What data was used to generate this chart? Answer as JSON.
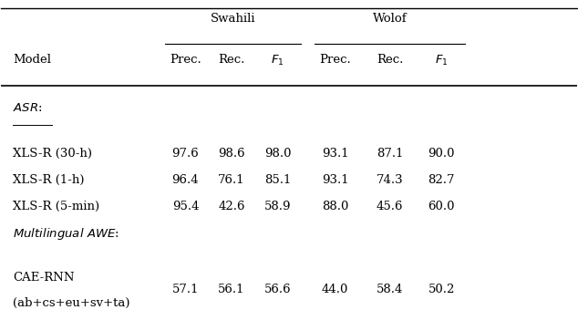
{
  "swahili_header": "Swahili",
  "wolof_header": "Wolof",
  "col_headers": [
    "Model",
    "Prec.",
    "Rec.",
    "F_1",
    "Prec.",
    "Rec.",
    "F_1"
  ],
  "section_asr": "ASR",
  "section_awe": "Multilingual AWE",
  "rows": [
    {
      "model": "XLS-R (30-h)",
      "sw_prec": "97.6",
      "sw_rec": "98.6",
      "sw_f1": "98.0",
      "wo_prec": "93.1",
      "wo_rec": "87.1",
      "wo_f1": "90.0"
    },
    {
      "model": "XLS-R (1-h)",
      "sw_prec": "96.4",
      "sw_rec": "76.1",
      "sw_f1": "85.1",
      "wo_prec": "93.1",
      "wo_rec": "74.3",
      "wo_f1": "82.7"
    },
    {
      "model": "XLS-R (5-min)",
      "sw_prec": "95.4",
      "sw_rec": "42.6",
      "sw_f1": "58.9",
      "wo_prec": "88.0",
      "wo_rec": "45.6",
      "wo_f1": "60.0"
    },
    {
      "model_line1": "CAE-RNN",
      "model_line2": "(ab+cs+eu+sv+ta)",
      "sw_prec": "57.1",
      "sw_rec": "56.1",
      "sw_f1": "56.6",
      "wo_prec": "44.0",
      "wo_rec": "58.4",
      "wo_f1": "50.2"
    }
  ],
  "background_color": "#ffffff",
  "font_size": 9.5
}
